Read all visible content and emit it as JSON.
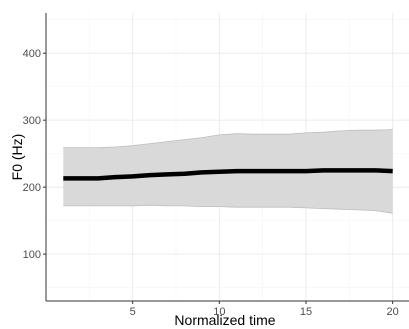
{
  "chart_data": {
    "type": "line",
    "xlabel": "Normalized time",
    "ylabel": "F0 (Hz)",
    "xlim": [
      0,
      21
    ],
    "ylim": [
      30,
      460
    ],
    "x_ticks": [
      5,
      10,
      15,
      20
    ],
    "y_ticks": [
      100,
      200,
      300,
      400
    ],
    "grid": true,
    "series": [
      {
        "x": [
          1,
          2,
          3,
          4,
          5,
          6,
          7,
          8,
          9,
          10,
          11,
          12,
          13,
          14,
          15,
          16,
          17,
          18,
          19,
          20
        ],
        "values": [
          213,
          213,
          213,
          215,
          216,
          218,
          219,
          220,
          222,
          223,
          224,
          224,
          224,
          224,
          224,
          225,
          225,
          225,
          225,
          224
        ],
        "upper": [
          259,
          259,
          259,
          260,
          262,
          265,
          268,
          271,
          274,
          278,
          280,
          279,
          279,
          279,
          281,
          282,
          284,
          285,
          285,
          286
        ],
        "lower": [
          172,
          172,
          172,
          172,
          172,
          173,
          172,
          172,
          171,
          171,
          170,
          170,
          170,
          170,
          169,
          168,
          167,
          166,
          165,
          161
        ]
      }
    ],
    "colors": {
      "band": "#d9d9d9",
      "band_edge": "#bdbdbd",
      "line": "#000000",
      "grid_major": "#ebebeb",
      "grid_minor": "#f5f5f5",
      "axis": "#333333"
    }
  }
}
